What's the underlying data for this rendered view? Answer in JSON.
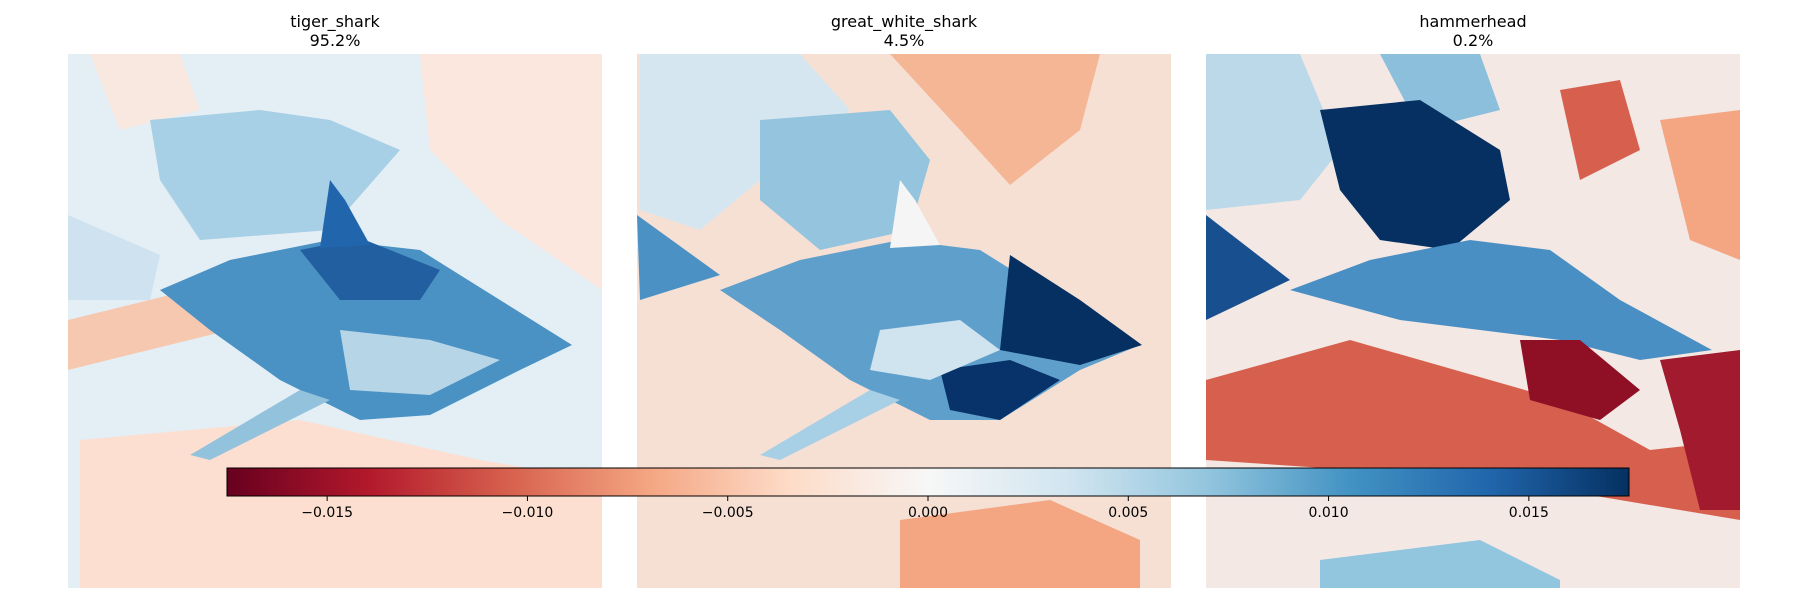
{
  "chart_data": {
    "type": "heatmap",
    "title": "",
    "colormap": "RdBu",
    "value_range": [
      -0.0175,
      0.0175
    ],
    "panels": [
      {
        "label": "tiger_shark",
        "score": "95.2%"
      },
      {
        "label": "great_white_shark",
        "score": "4.5%"
      },
      {
        "label": "hammerhead",
        "score": "0.2%"
      }
    ],
    "colorbar": {
      "orientation": "horizontal",
      "range": [
        -0.0175,
        0.0175
      ],
      "ticks": [
        {
          "value": -0.015,
          "label": "−0.015"
        },
        {
          "value": -0.01,
          "label": "−0.010"
        },
        {
          "value": -0.005,
          "label": "−0.005"
        },
        {
          "value": 0.0,
          "label": "0.000"
        },
        {
          "value": 0.005,
          "label": "0.005"
        },
        {
          "value": 0.01,
          "label": "0.010"
        },
        {
          "value": 0.015,
          "label": "0.015"
        }
      ]
    }
  }
}
